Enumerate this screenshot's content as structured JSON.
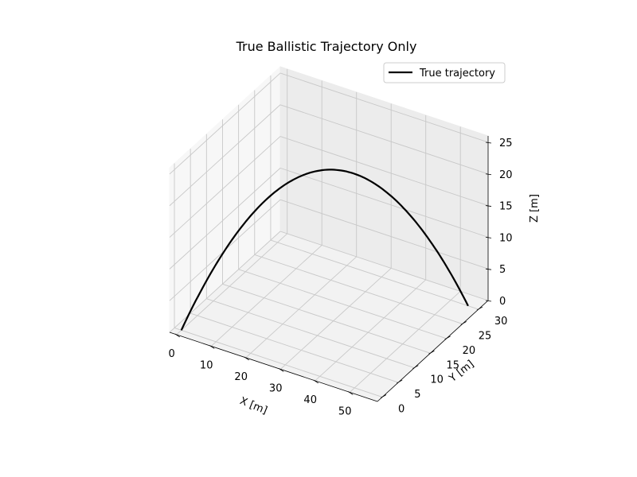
{
  "chart_data": {
    "type": "line",
    "projection": "3d",
    "title": "True Ballistic Trajectory Only",
    "xlabel": "X [m]",
    "ylabel": "Y [m]",
    "zlabel": "Z [m]",
    "xlim": [
      -2,
      58
    ],
    "ylim": [
      -1.5,
      33
    ],
    "zlim": [
      0,
      26
    ],
    "xticks": [
      0,
      10,
      20,
      30,
      40,
      50
    ],
    "yticks": [
      0,
      5,
      10,
      15,
      20,
      25,
      30
    ],
    "zticks": [
      0,
      5,
      10,
      15,
      20,
      25
    ],
    "grid": true,
    "legend": "top-right",
    "series": [
      {
        "name": "True trajectory",
        "color": "#000000",
        "start": [
          0,
          0,
          0
        ],
        "end": [
          55,
          30,
          0
        ],
        "peak_z": 23.4
      }
    ]
  }
}
